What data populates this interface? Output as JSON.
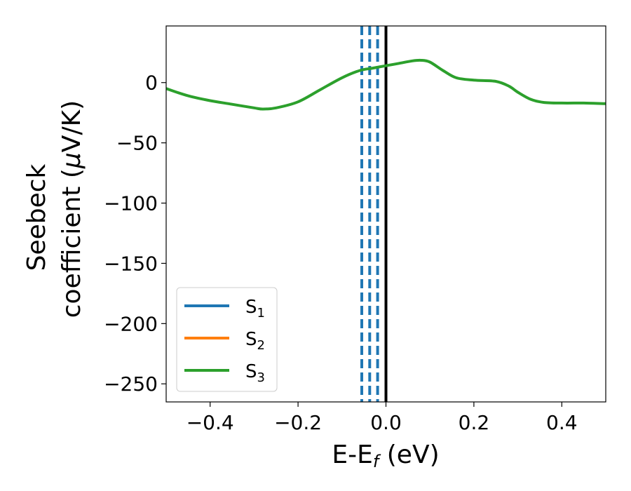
{
  "chart_data": {
    "type": "line",
    "xlabel": {
      "base": "E-E",
      "sub": "f",
      "suffix": " (eV)"
    },
    "ylabel": {
      "line1": "Seebeck",
      "line2_prefix": "coefficient  (",
      "mu": "μ",
      "line2_suffix": "V/K)"
    },
    "xlim": [
      -0.5,
      0.5
    ],
    "ylim": [
      -265,
      47
    ],
    "x_ticks": [
      -0.4,
      -0.2,
      0.0,
      0.2,
      0.4
    ],
    "x_tick_labels": [
      "−0.4",
      "−0.2",
      "0.0",
      "0.2",
      "0.4"
    ],
    "y_ticks": [
      0,
      -50,
      -100,
      -150,
      -200,
      -250
    ],
    "y_tick_labels": [
      "0",
      "−50",
      "−100",
      "−150",
      "−200",
      "−250"
    ],
    "grid": false,
    "legend_position": "lower-left",
    "series": [
      {
        "name": "S",
        "sub": "1",
        "color": "#1f77b4"
      },
      {
        "name": "S",
        "sub": "2",
        "color": "#ff7f0e"
      },
      {
        "name": "S",
        "sub": "3",
        "color": "#2ca02c"
      }
    ],
    "curve": {
      "color": "#2ca02c",
      "x": [
        -0.5,
        -0.45,
        -0.4,
        -0.35,
        -0.3,
        -0.28,
        -0.25,
        -0.2,
        -0.15,
        -0.1,
        -0.06,
        -0.03,
        0.0,
        0.03,
        0.06,
        0.08,
        0.1,
        0.13,
        0.16,
        0.2,
        0.25,
        0.28,
        0.3,
        0.33,
        0.36,
        0.4,
        0.45,
        0.5
      ],
      "y": [
        -5,
        -11,
        -15,
        -18,
        -21,
        -22,
        -21,
        -16,
        -6,
        4,
        10,
        12,
        14,
        16,
        18,
        18.5,
        17,
        10,
        4,
        2,
        1,
        -3,
        -8,
        -14,
        -16.5,
        -17,
        -17,
        -17.5
      ]
    },
    "vlines": [
      {
        "x": -0.055,
        "style": "dashed",
        "color": "#1f77b4"
      },
      {
        "x": -0.037,
        "style": "dashed",
        "color": "#1f77b4"
      },
      {
        "x": -0.019,
        "style": "dashed",
        "color": "#1f77b4"
      },
      {
        "x": 0.0,
        "style": "solid",
        "color": "#000000"
      }
    ]
  }
}
